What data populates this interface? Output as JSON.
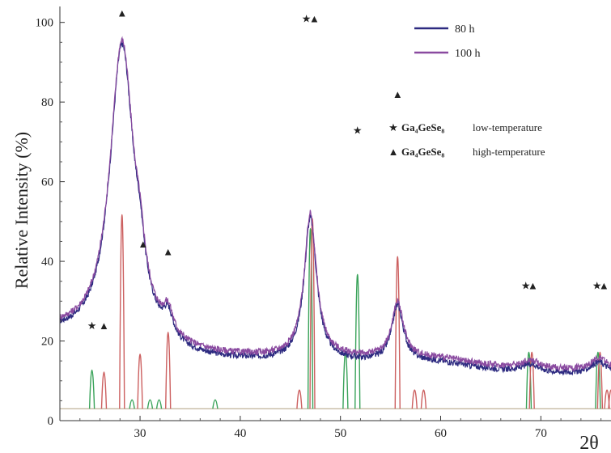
{
  "chart_data": {
    "type": "line",
    "xlabel": "2θ",
    "ylabel": "Relative Intensity (%)",
    "xlim": [
      22,
      77
    ],
    "ylim": [
      0,
      104
    ],
    "x_ticks": [
      30,
      40,
      50,
      60,
      70
    ],
    "y_ticks": [
      0,
      20,
      40,
      60,
      80,
      100
    ],
    "grid": false,
    "legend": "top-right",
    "series": [
      {
        "name": "80 h",
        "color": "#2d2a80",
        "background": 20.5,
        "peaks": [
          {
            "x": 28.2,
            "height": 77,
            "width": 1.5
          },
          {
            "x": 30.0,
            "height": 8,
            "width": 0.6
          },
          {
            "x": 32.8,
            "height": 6,
            "width": 0.6
          },
          {
            "x": 47.0,
            "height": 36,
            "width": 0.75
          },
          {
            "x": 55.7,
            "height": 14,
            "width": 0.7
          },
          {
            "x": 69.0,
            "height": 2,
            "width": 1.0
          },
          {
            "x": 75.8,
            "height": 3,
            "width": 1.0
          }
        ]
      },
      {
        "name": "100 h",
        "color": "#8a4aa0",
        "background": 21.5,
        "peaks": [
          {
            "x": 28.2,
            "height": 77,
            "width": 1.5
          },
          {
            "x": 30.0,
            "height": 8,
            "width": 0.6
          },
          {
            "x": 32.8,
            "height": 6,
            "width": 0.6
          },
          {
            "x": 47.0,
            "height": 36,
            "width": 0.75
          },
          {
            "x": 55.7,
            "height": 14,
            "width": 0.7
          },
          {
            "x": 69.0,
            "height": 2,
            "width": 1.0
          },
          {
            "x": 75.8,
            "height": 3,
            "width": 1.0
          }
        ]
      }
    ],
    "reference_baseline": 3,
    "reference_lines": [
      {
        "phase": "low",
        "x": 25.2,
        "height": 22
      },
      {
        "phase": "low",
        "x": 29.2,
        "height": 7
      },
      {
        "phase": "low",
        "x": 31.0,
        "height": 7
      },
      {
        "phase": "low",
        "x": 31.9,
        "height": 7
      },
      {
        "phase": "low",
        "x": 37.5,
        "height": 7
      },
      {
        "phase": "low",
        "x": 47.0,
        "height": 93
      },
      {
        "phase": "low",
        "x": 50.5,
        "height": 31
      },
      {
        "phase": "low",
        "x": 51.7,
        "height": 70
      },
      {
        "phase": "low",
        "x": 68.8,
        "height": 31
      },
      {
        "phase": "low",
        "x": 75.7,
        "height": 31
      },
      {
        "phase": "high",
        "x": 26.4,
        "height": 21
      },
      {
        "phase": "high",
        "x": 28.2,
        "height": 100
      },
      {
        "phase": "high",
        "x": 30.0,
        "height": 30
      },
      {
        "phase": "high",
        "x": 32.8,
        "height": 41
      },
      {
        "phase": "high",
        "x": 45.9,
        "height": 12
      },
      {
        "phase": "high",
        "x": 47.2,
        "height": 98
      },
      {
        "phase": "high",
        "x": 55.7,
        "height": 79
      },
      {
        "phase": "high",
        "x": 57.4,
        "height": 12
      },
      {
        "phase": "high",
        "x": 58.3,
        "height": 12
      },
      {
        "phase": "high",
        "x": 69.1,
        "height": 31
      },
      {
        "phase": "high",
        "x": 75.9,
        "height": 31
      },
      {
        "phase": "high",
        "x": 76.6,
        "height": 12
      },
      {
        "phase": "high",
        "x": 77.0,
        "height": 12
      }
    ],
    "markers": [
      {
        "symbol": "★",
        "x": 25.2,
        "y": 23
      },
      {
        "symbol": "▲",
        "x": 26.4,
        "y": 23
      },
      {
        "symbol": "▲",
        "x": 28.2,
        "y": 101.5
      },
      {
        "symbol": "▲",
        "x": 30.3,
        "y": 43.5
      },
      {
        "symbol": "▲",
        "x": 32.8,
        "y": 41.5
      },
      {
        "symbol": "★",
        "x": 46.6,
        "y": 100
      },
      {
        "symbol": "▲",
        "x": 47.4,
        "y": 100
      },
      {
        "symbol": "★",
        "x": 51.7,
        "y": 72
      },
      {
        "symbol": "▲",
        "x": 55.7,
        "y": 81
      },
      {
        "symbol": "★",
        "x": 68.5,
        "y": 33
      },
      {
        "symbol": "▲",
        "x": 69.2,
        "y": 33
      },
      {
        "symbol": "★",
        "x": 75.6,
        "y": 33
      },
      {
        "symbol": "▲",
        "x": 76.3,
        "y": 33
      }
    ],
    "phase_legend": [
      {
        "symbol": "★",
        "formula": "Ga₄GeSe₈",
        "description": "low-temperature",
        "color": "#1e9a3a"
      },
      {
        "symbol": "▲",
        "formula": "Ga₄GeSe₈",
        "description": "high-temperature",
        "color": "#d04050"
      }
    ],
    "reference_colors": {
      "low": "#3aa35a",
      "high": "#cc6060"
    }
  }
}
